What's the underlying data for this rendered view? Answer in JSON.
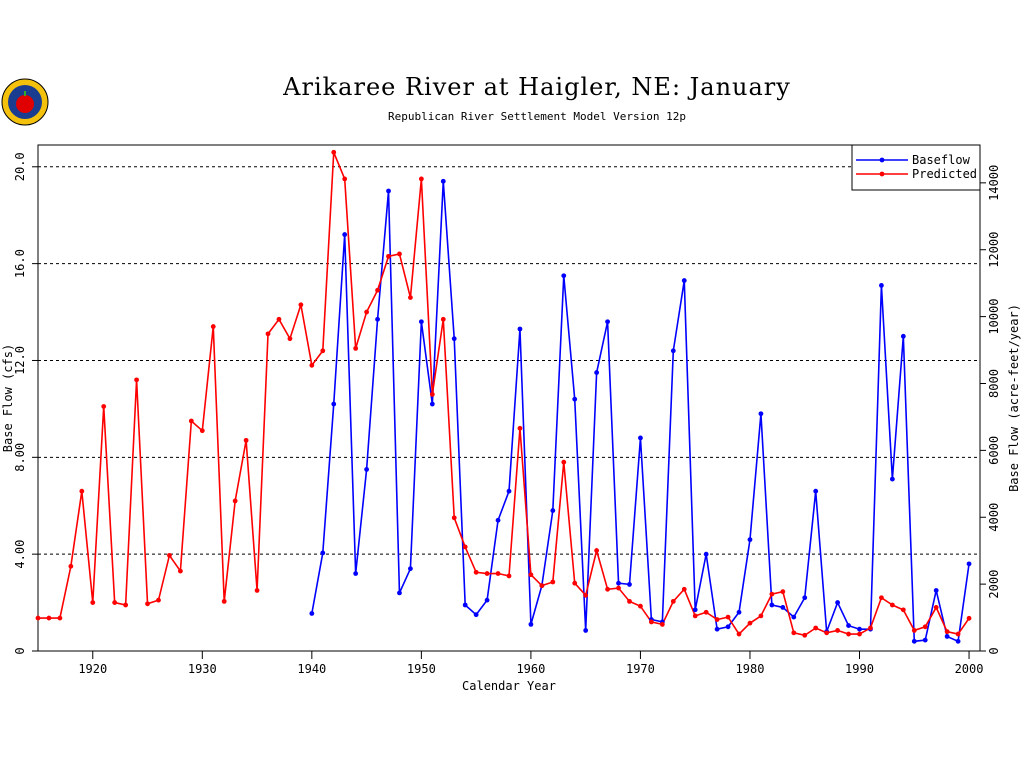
{
  "chart_data": {
    "type": "line",
    "title": "Arikaree River at Haigler, NE: January",
    "subtitle": "Republican River Settlement Model Version 12p",
    "x_label": "Calendar Year",
    "y_label": "Base Flow (cfs)",
    "y2_label": "Base Flow (acre-feet/year)",
    "x": [
      1915,
      1916,
      1917,
      1918,
      1919,
      1920,
      1921,
      1922,
      1923,
      1924,
      1925,
      1926,
      1927,
      1928,
      1929,
      1930,
      1931,
      1932,
      1933,
      1934,
      1935,
      1936,
      1937,
      1938,
      1939,
      1940,
      1941,
      1942,
      1943,
      1944,
      1945,
      1946,
      1947,
      1948,
      1949,
      1950,
      1951,
      1952,
      1953,
      1954,
      1955,
      1956,
      1957,
      1958,
      1959,
      1960,
      1961,
      1962,
      1963,
      1964,
      1965,
      1966,
      1967,
      1968,
      1969,
      1970,
      1971,
      1972,
      1973,
      1974,
      1975,
      1976,
      1977,
      1978,
      1979,
      1980,
      1981,
      1982,
      1983,
      1984,
      1985,
      1986,
      1987,
      1988,
      1989,
      1990,
      1991,
      1992,
      1993,
      1994,
      1995,
      1996,
      1997,
      1998,
      1999,
      2000
    ],
    "xlim": [
      1915,
      2001
    ],
    "xticks": [
      1920,
      1930,
      1940,
      1950,
      1960,
      1970,
      1980,
      1990,
      2000
    ],
    "ylim": [
      0,
      20.9
    ],
    "yticks": [
      0,
      {
        "value": 4,
        "label": "4.00"
      },
      {
        "value": 8,
        "label": "8.00"
      },
      {
        "value": 12,
        "label": "12.0"
      },
      {
        "value": 16,
        "label": "16.0"
      },
      {
        "value": 20,
        "label": "20.0"
      }
    ],
    "y2lim": [
      0,
      15132
    ],
    "y2ticks": [
      0,
      2000,
      4000,
      6000,
      8000,
      10000,
      12000,
      14000
    ],
    "grid": true,
    "legend": "upper right",
    "series": [
      {
        "name": "Baseflow",
        "color": "#0000ff",
        "values": [
          null,
          null,
          null,
          null,
          null,
          null,
          null,
          null,
          null,
          null,
          null,
          null,
          null,
          null,
          null,
          null,
          null,
          null,
          null,
          null,
          null,
          null,
          null,
          null,
          null,
          1.55,
          4.05,
          10.2,
          17.2,
          3.2,
          7.5,
          13.7,
          19.0,
          2.4,
          3.4,
          13.6,
          10.2,
          19.4,
          12.9,
          1.9,
          1.5,
          2.1,
          5.4,
          6.6,
          13.3,
          1.1,
          2.7,
          5.8,
          15.5,
          10.4,
          0.85,
          11.5,
          13.6,
          2.8,
          2.75,
          8.8,
          1.3,
          1.2,
          12.4,
          15.3,
          1.7,
          4.0,
          0.9,
          1.0,
          1.6,
          4.6,
          9.8,
          1.9,
          1.8,
          1.4,
          2.2,
          6.6,
          0.8,
          2.0,
          1.05,
          0.9,
          0.9,
          15.1,
          7.1,
          13.0,
          0.4,
          0.45,
          2.5,
          0.6,
          0.4,
          3.6
        ]
      },
      {
        "name": "Predicted",
        "color": "#ff0000",
        "values": [
          1.36,
          1.36,
          1.36,
          3.5,
          6.6,
          2.0,
          10.1,
          2.0,
          1.9,
          11.2,
          1.95,
          2.1,
          3.95,
          3.3,
          9.5,
          9.1,
          13.4,
          2.05,
          6.2,
          8.7,
          2.5,
          13.1,
          13.7,
          12.9,
          14.3,
          11.8,
          12.4,
          20.6,
          19.5,
          12.5,
          14.0,
          14.9,
          16.3,
          16.4,
          14.6,
          19.5,
          10.6,
          13.7,
          5.5,
          4.3,
          3.25,
          3.2,
          3.2,
          3.1,
          9.2,
          3.15,
          2.7,
          2.85,
          7.8,
          2.8,
          2.3,
          4.15,
          2.55,
          2.6,
          2.05,
          1.85,
          1.2,
          1.1,
          2.05,
          2.55,
          1.45,
          1.6,
          1.3,
          1.4,
          0.7,
          1.15,
          1.45,
          2.35,
          2.45,
          0.75,
          0.65,
          0.95,
          0.75,
          0.85,
          0.7,
          0.7,
          0.95,
          2.2,
          1.9,
          1.7,
          0.85,
          1.0,
          1.8,
          0.8,
          0.7,
          1.35
        ]
      }
    ]
  }
}
